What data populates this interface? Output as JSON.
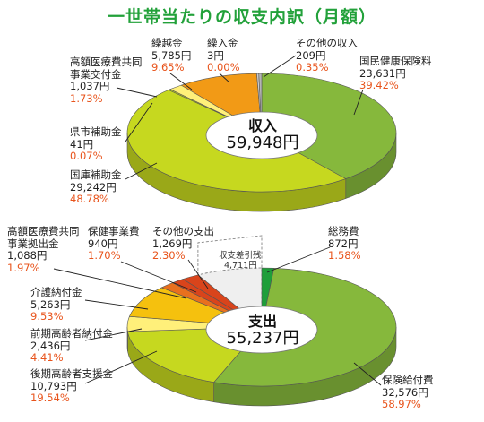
{
  "title": "一世帯当たりの収支内訳（月額）",
  "colors": {
    "green": "#86b83c",
    "light_green": "#c6d81f",
    "pale_yellow": "#fff07a",
    "orange": "#f29a16",
    "gold": "#f5c10e",
    "dark_orange": "#e8701e",
    "red_orange": "#d9441b",
    "dark_green": "#1e9e3a",
    "percent_text": "#e8541c",
    "title_text": "#22a13a"
  },
  "chart_data": [
    {
      "type": "pie",
      "name": "収入",
      "center_label": "収入",
      "total": "59,948円",
      "slices": [
        {
          "label": "国民健康保険料",
          "amount": "23,631円",
          "percent": "39.42%",
          "value": 39.42,
          "color": "#86b83c"
        },
        {
          "label": "国庫補助金",
          "amount": "29,242円",
          "percent": "48.78%",
          "value": 48.78,
          "color": "#c6d81f"
        },
        {
          "label": "県市補助金",
          "amount": "41円",
          "percent": "0.07%",
          "value": 0.07,
          "color": "#c6d81f"
        },
        {
          "label": "高額医療費共同事業交付金",
          "amount": "1,037円",
          "percent": "1.73%",
          "value": 1.73,
          "color": "#fff07a"
        },
        {
          "label": "繰越金",
          "amount": "5,785円",
          "percent": "9.65%",
          "value": 9.65,
          "color": "#f29a16"
        },
        {
          "label": "繰入金",
          "amount": "3円",
          "percent": "0.00%",
          "value": 0.0,
          "color": "#cccccc"
        },
        {
          "label": "その他の収入",
          "amount": "209円",
          "percent": "0.35%",
          "value": 0.35,
          "color": "#b5b5b5"
        }
      ]
    },
    {
      "type": "pie",
      "name": "支出",
      "center_label": "支出",
      "total": "55,237円",
      "slices": [
        {
          "label": "総務費",
          "amount": "872円",
          "percent": "1.58%",
          "value": 1.58,
          "color": "#1e9e3a"
        },
        {
          "label": "保険給付費",
          "amount": "32,576円",
          "percent": "58.97%",
          "value": 58.97,
          "color": "#86b83c"
        },
        {
          "label": "後期高齢者支援金",
          "amount": "10,793円",
          "percent": "19.54%",
          "value": 19.54,
          "color": "#c6d81f"
        },
        {
          "label": "前期高齢者納付金",
          "amount": "2,436円",
          "percent": "4.41%",
          "value": 4.41,
          "color": "#fff07a"
        },
        {
          "label": "介護納付金",
          "amount": "5,263円",
          "percent": "9.53%",
          "value": 9.53,
          "color": "#f5c10e"
        },
        {
          "label": "高額医療費共同事業拠出金",
          "amount": "1,088円",
          "percent": "1.97%",
          "value": 1.97,
          "color": "#e8701e"
        },
        {
          "label": "保健事業費",
          "amount": "940円",
          "percent": "1.70%",
          "value": 1.7,
          "color": "#d9441b"
        },
        {
          "label": "その他の支出",
          "amount": "1,269円",
          "percent": "2.30%",
          "value": 2.3,
          "color": "#d9441b"
        }
      ],
      "difference": {
        "label": "収支差引残",
        "amount": "4,711円"
      }
    }
  ]
}
